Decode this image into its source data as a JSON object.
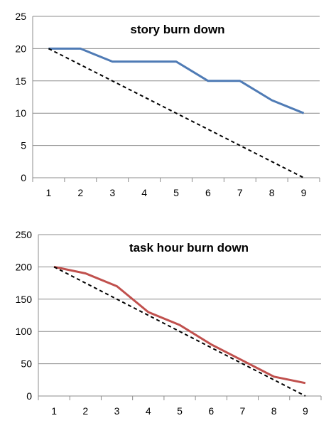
{
  "chart_data": [
    {
      "type": "line",
      "title": "story burn down",
      "categories": [
        "1",
        "2",
        "3",
        "4",
        "5",
        "6",
        "7",
        "8",
        "9"
      ],
      "ylim": [
        0,
        25
      ],
      "y_ticks": [
        "0",
        "5",
        "10",
        "15",
        "20",
        "25"
      ],
      "grid": "horizontal",
      "series": [
        {
          "values": [
            20,
            20,
            18,
            18,
            18,
            15,
            15,
            12,
            10
          ],
          "color": "#4F7BB5",
          "style": "solid"
        },
        {
          "values": [
            20,
            17.5,
            15,
            12.5,
            10,
            7.5,
            5,
            2.5,
            0
          ],
          "color": "#000000",
          "style": "dashed"
        }
      ]
    },
    {
      "type": "line",
      "title": "task hour burn down",
      "categories": [
        "1",
        "2",
        "3",
        "4",
        "5",
        "6",
        "7",
        "8",
        "9"
      ],
      "ylim": [
        0,
        250
      ],
      "y_ticks": [
        "0",
        "50",
        "100",
        "150",
        "200",
        "250"
      ],
      "grid": "horizontal",
      "series": [
        {
          "values": [
            200,
            190,
            170,
            130,
            110,
            80,
            55,
            30,
            20
          ],
          "color": "#C0504D",
          "style": "solid"
        },
        {
          "values": [
            200,
            175,
            150,
            125,
            100,
            75,
            50,
            25,
            0
          ],
          "color": "#000000",
          "style": "dashed"
        }
      ]
    }
  ]
}
